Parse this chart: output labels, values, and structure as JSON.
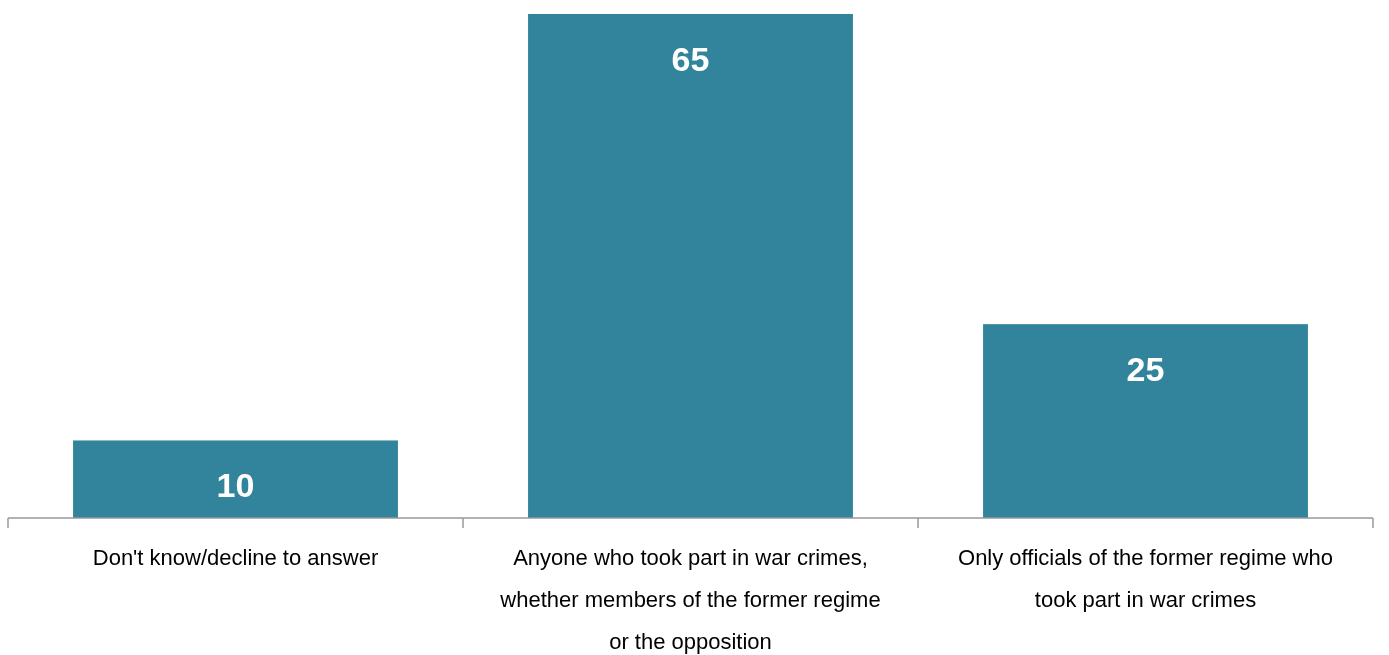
{
  "chart_data": {
    "type": "bar",
    "categories": [
      "Don't know/decline to answer",
      "Anyone who took part in war crimes, whether members of the former regime or the opposition",
      "Only officials of the former regime who took part in war crimes"
    ],
    "values": [
      10,
      65,
      25
    ],
    "color": "#31849b",
    "data_labels": true
  }
}
